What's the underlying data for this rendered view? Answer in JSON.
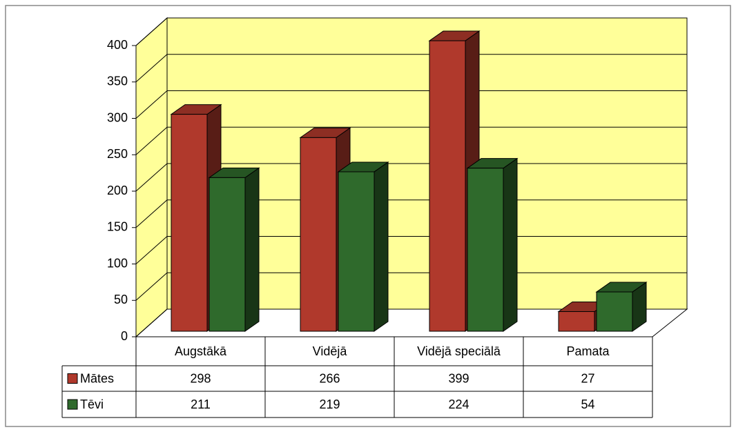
{
  "chart_data": {
    "type": "bar3d",
    "categories": [
      "Augstākā",
      "Vidējā",
      "Vidējā speciālā",
      "Pamata"
    ],
    "series": [
      {
        "name": "Mātes",
        "color": "#b0392c",
        "values": [
          298,
          266,
          399,
          27
        ]
      },
      {
        "name": "Tēvi",
        "color": "#2f6a2c",
        "values": [
          211,
          219,
          224,
          54
        ]
      }
    ],
    "ylim": [
      0,
      400
    ],
    "yticks": [
      0,
      50,
      100,
      150,
      200,
      250,
      300,
      350,
      400
    ],
    "grid": true
  }
}
